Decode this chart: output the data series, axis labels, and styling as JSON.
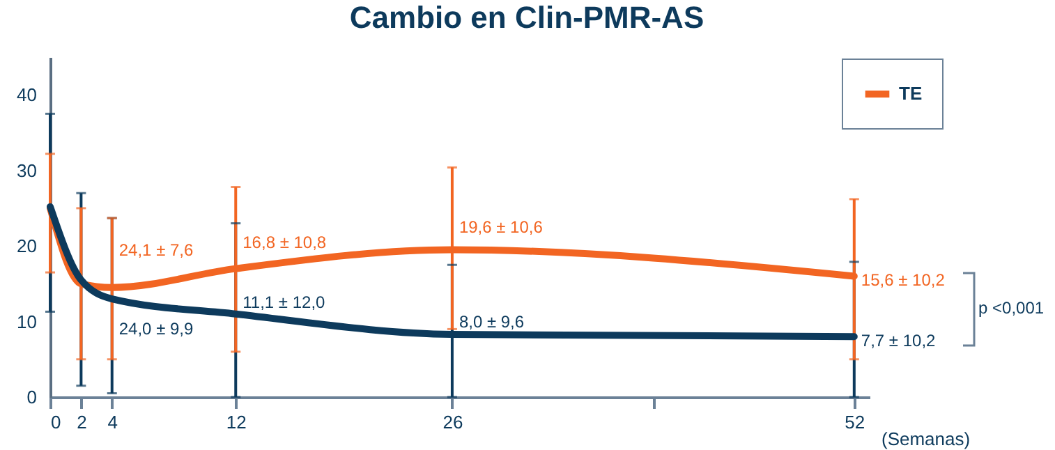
{
  "chart_data": {
    "type": "line",
    "title": "Cambio en Clin-PMR-AS",
    "xlabel": "(Semanas)",
    "x": [
      0,
      2,
      4,
      12,
      26,
      52
    ],
    "series": [
      {
        "name": "TE",
        "color": "#f26522",
        "values": [
          25,
          15,
          14.5,
          17,
          19.5,
          16
        ],
        "errors": [
          [
            16.5,
            32.2
          ],
          [
            5,
            25
          ],
          [
            5,
            23.7
          ],
          [
            6,
            27.8
          ],
          [
            9,
            30.4
          ],
          [
            5,
            26.2
          ]
        ]
      },
      {
        "color": "#0d3a5c",
        "values": [
          25.2,
          15.5,
          13,
          11,
          8.3,
          8
        ],
        "errors": [
          [
            11.3,
            37.5
          ],
          [
            1.5,
            27
          ],
          [
            0.5,
            23.7
          ],
          [
            0,
            23
          ],
          [
            0,
            17.5
          ],
          [
            0,
            17.9
          ]
        ]
      }
    ],
    "annotations": [
      {
        "text": "24,1 ± 7,6",
        "x": 4,
        "y": 19.5
      },
      {
        "text": "24,0 ± 9,9",
        "x": 4,
        "y": 9
      },
      {
        "text": "16,8 ± 10,8",
        "x": 12,
        "y": 20.5
      },
      {
        "text": "11,1 ± 12,0",
        "x": 12,
        "y": 12.5
      },
      {
        "text": "19,6 ± 10,6",
        "x": 26,
        "y": 22.5
      },
      {
        "text": "8,0 ± 9,6",
        "x": 26,
        "y": 10
      },
      {
        "text": "15,6 ± 10,2",
        "x": 52,
        "y": 15.5
      },
      {
        "text": "7,7 ± 10,2",
        "x": 52,
        "y": 7.5
      },
      "p <0,001"
    ],
    "xlim": [
      0,
      53
    ],
    "ylim": [
      0,
      45
    ],
    "xticks": [
      0,
      2,
      4,
      12,
      26,
      {
        "value": 39,
        "label": null
      },
      52
    ],
    "yticks": [
      0,
      10,
      20,
      30,
      40
    ],
    "legend": "top right",
    "grid": false,
    "marker": "none",
    "line_style": "solid"
  }
}
